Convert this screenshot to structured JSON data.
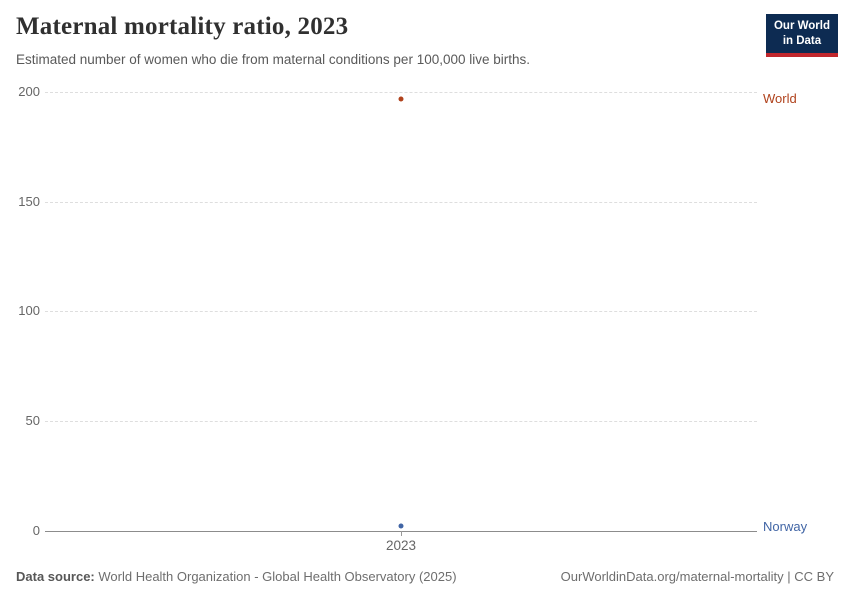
{
  "header": {
    "title": "Maternal mortality ratio, 2023",
    "subtitle": "Estimated number of women who die from maternal conditions per 100,000 live births.",
    "logo": {
      "line1": "Our World",
      "line2": "in Data",
      "bg_color": "#0d2b52",
      "accent_color": "#c1272d"
    }
  },
  "chart_data": {
    "type": "scatter",
    "x": [
      2023
    ],
    "x_tick_labels": [
      "2023"
    ],
    "series": [
      {
        "name": "World",
        "values": [
          197
        ],
        "color": "#b0421c"
      },
      {
        "name": "Norway",
        "values": [
          2
        ],
        "color": "#4165a5"
      }
    ],
    "title": "Maternal mortality ratio, 2023",
    "xlabel": "",
    "ylabel": "",
    "y_ticks": [
      0,
      50,
      100,
      150,
      200
    ],
    "ylim": [
      0,
      200
    ],
    "grid": "horizontal-dashed",
    "legend_position": "labels-at-right-edge"
  },
  "footer": {
    "source_label": "Data source:",
    "source_text": "World Health Organization - Global Health Observatory (2025)",
    "credit": "OurWorldinData.org/maternal-mortality | CC BY"
  },
  "colors": {
    "gridline": "#dedede",
    "axis": "#8c8c8c",
    "tick_text": "#666666",
    "world_series": "#b0421c",
    "norway_series": "#4165a5"
  }
}
